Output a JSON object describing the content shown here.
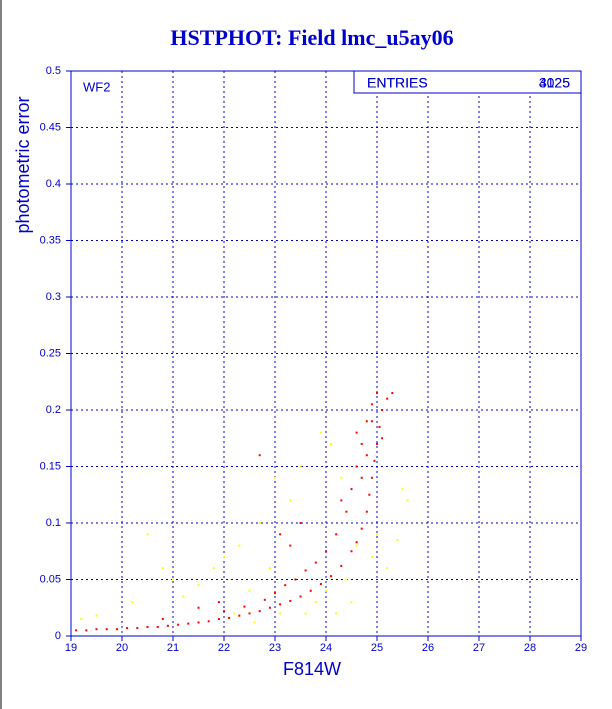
{
  "chart_data": {
    "type": "scatter",
    "title": "HSTPHOT: Field lmc_u5ay06",
    "panel_label": "WF2",
    "xlabel": "F814W",
    "ylabel": "photometric error",
    "stats": [
      {
        "label": "ENTRIES",
        "value": 3025
      },
      {
        "label": "ENTRIES",
        "value": 4125
      }
    ],
    "xlim": [
      19,
      29
    ],
    "xticks": [
      19,
      20,
      21,
      22,
      23,
      24,
      25,
      26,
      27,
      28,
      29
    ],
    "ylim": [
      0,
      0.5
    ],
    "yticks": [
      0,
      0.05,
      0.1,
      0.15,
      0.2,
      0.25,
      0.3,
      0.35,
      0.4,
      0.45,
      0.5
    ],
    "grid": true,
    "series": [
      {
        "color": "#ffff00",
        "x": [
          19.2,
          19.5,
          20.5,
          20.8,
          21.2,
          21.5,
          21.8,
          22.0,
          22.2,
          22.5,
          22.7,
          22.9,
          23.1,
          23.3,
          23.5,
          23.8,
          24.0,
          24.2,
          24.4,
          24.6,
          24.9,
          25.2,
          25.4,
          25.5,
          25.6,
          23.9,
          24.3,
          21.0,
          20.2,
          22.3,
          23.0,
          24.1,
          24.8,
          25.0,
          22.6,
          23.6,
          24.5
        ],
        "values": [
          0.015,
          0.018,
          0.09,
          0.06,
          0.035,
          0.045,
          0.06,
          0.07,
          0.02,
          0.04,
          0.1,
          0.06,
          0.02,
          0.12,
          0.15,
          0.03,
          0.04,
          0.02,
          0.05,
          0.08,
          0.07,
          0.06,
          0.085,
          0.13,
          0.12,
          0.18,
          0.14,
          0.05,
          0.03,
          0.08,
          0.14,
          0.17,
          0.19,
          0.09,
          0.012,
          0.02,
          0.03
        ]
      },
      {
        "color": "#ff0000",
        "x": [
          19.1,
          19.3,
          19.5,
          19.7,
          19.9,
          20.1,
          20.3,
          20.5,
          20.7,
          20.9,
          21.1,
          21.3,
          21.5,
          21.7,
          21.9,
          22.1,
          22.3,
          22.5,
          22.7,
          22.9,
          23.1,
          23.3,
          23.5,
          23.7,
          23.9,
          24.1,
          24.3,
          24.5,
          24.6,
          24.7,
          24.8,
          24.85,
          24.9,
          24.95,
          25.0,
          25.05,
          25.1,
          25.2,
          25.3,
          22.0,
          22.4,
          22.8,
          23.0,
          23.2,
          23.4,
          23.6,
          23.8,
          24.0,
          24.2,
          24.4,
          24.5,
          24.6,
          24.7,
          24.8,
          24.9,
          25.0,
          23.1,
          23.5,
          22.7,
          21.5,
          20.8,
          21.9,
          23.3,
          24.3,
          24.6,
          24.9,
          25.1,
          24.8,
          24.7
        ],
        "values": [
          0.005,
          0.005,
          0.006,
          0.006,
          0.006,
          0.007,
          0.007,
          0.008,
          0.008,
          0.009,
          0.01,
          0.011,
          0.012,
          0.013,
          0.015,
          0.016,
          0.018,
          0.02,
          0.022,
          0.025,
          0.028,
          0.031,
          0.035,
          0.04,
          0.046,
          0.053,
          0.062,
          0.075,
          0.083,
          0.095,
          0.11,
          0.125,
          0.14,
          0.155,
          0.17,
          0.185,
          0.2,
          0.21,
          0.215,
          0.022,
          0.026,
          0.032,
          0.038,
          0.045,
          0.05,
          0.058,
          0.065,
          0.075,
          0.09,
          0.11,
          0.13,
          0.15,
          0.17,
          0.19,
          0.205,
          0.215,
          0.09,
          0.1,
          0.16,
          0.025,
          0.015,
          0.03,
          0.08,
          0.12,
          0.18,
          0.19,
          0.175,
          0.16,
          0.14
        ]
      }
    ]
  }
}
